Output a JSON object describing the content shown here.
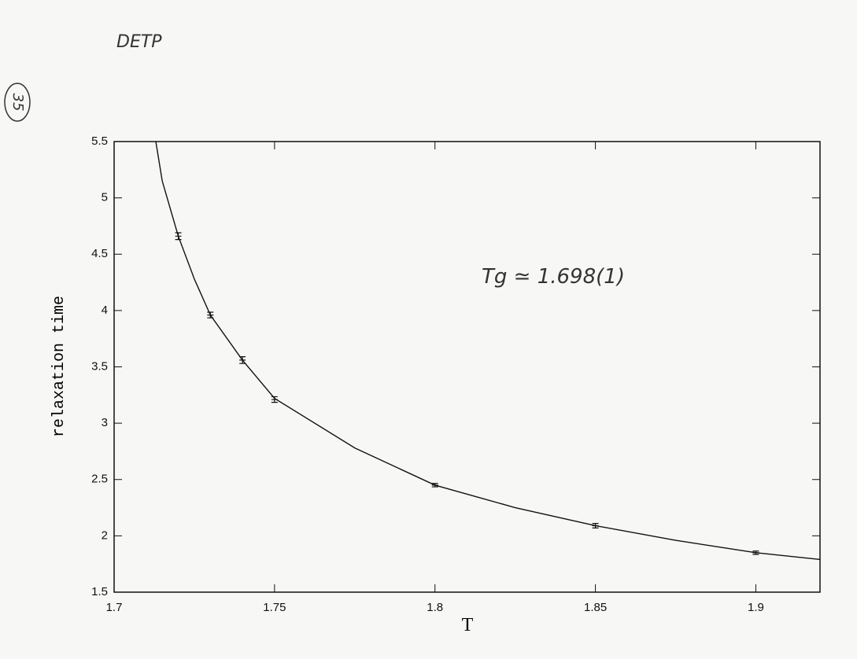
{
  "notes": {
    "header": "DETP",
    "page_number": "35",
    "annotation": "Tg ≃ 1.698(1)"
  },
  "chart_data": {
    "type": "scatter",
    "x_label": "T",
    "y_label": "relaxation time",
    "xlim": [
      1.7,
      1.92
    ],
    "ylim": [
      1.5,
      5.5
    ],
    "xticks": [
      1.7,
      1.75,
      1.8,
      1.85,
      1.9
    ],
    "yticks": [
      1.5,
      2,
      2.5,
      3,
      3.5,
      4,
      4.5,
      5,
      5.5
    ],
    "color": "#111111",
    "points": {
      "x": [
        1.72,
        1.73,
        1.74,
        1.75,
        1.8,
        1.85,
        1.9
      ],
      "values": [
        4.66,
        3.96,
        3.56,
        3.21,
        2.45,
        2.09,
        1.85
      ],
      "errors": [
        0.03,
        0.025,
        0.03,
        0.025,
        0.015,
        0.02,
        0.015
      ]
    },
    "curve": {
      "x": [
        1.713,
        1.715,
        1.72,
        1.725,
        1.73,
        1.74,
        1.75,
        1.775,
        1.8,
        1.825,
        1.85,
        1.875,
        1.9,
        1.92
      ],
      "values": [
        5.5,
        5.15,
        4.66,
        4.28,
        3.96,
        3.56,
        3.22,
        2.78,
        2.45,
        2.25,
        2.09,
        1.96,
        1.85,
        1.79
      ]
    }
  }
}
